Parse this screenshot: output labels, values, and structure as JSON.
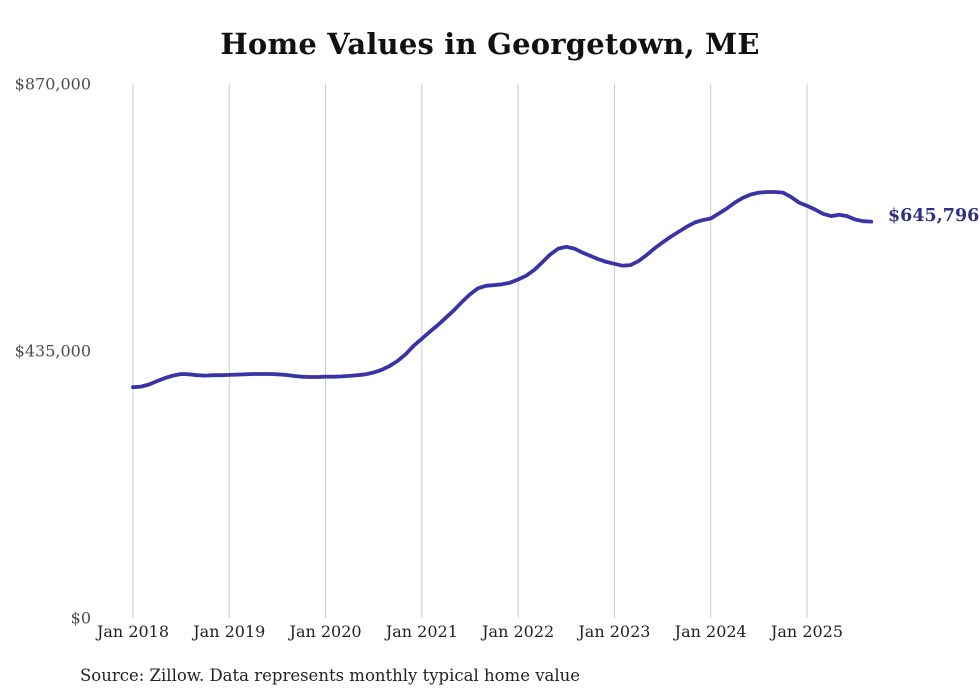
{
  "colors": {
    "line": "#3a33a6",
    "end_label": "#312e86",
    "grid": "#cbcbcb",
    "y_tick_text": "#4d4d4d",
    "x_tick_text": "#222222",
    "title_text": "#111111",
    "source_text": "#222222",
    "background": "#ffffff"
  },
  "chart_data": {
    "type": "line",
    "title": "Home Values in Georgetown, ME",
    "series_name": "Monthly typical home value",
    "frequency": "monthly",
    "x_start": "Jan 2018",
    "x_end": "Sep 2025",
    "x_tick_labels": [
      "Jan 2018",
      "Jan 2019",
      "Jan 2020",
      "Jan 2021",
      "Jan 2022",
      "Jan 2023",
      "Jan 2024",
      "Jan 2025"
    ],
    "y_ticks": [
      {
        "label": "$870,000",
        "value": 870000
      },
      {
        "label": "$435,000",
        "value": 435000
      },
      {
        "label": "$0",
        "value": 0
      }
    ],
    "ylim": [
      0,
      870000
    ],
    "grid": "vertical-only",
    "legend": "none",
    "end_label": "$645,796",
    "end_value": 645796,
    "source": "Source: Zillow. Data represents monthly typical home value",
    "values": [
      376000,
      377000,
      380500,
      386000,
      391000,
      395000,
      397500,
      397000,
      395500,
      395000,
      395500,
      395500,
      396000,
      396500,
      397000,
      397500,
      397500,
      397500,
      397000,
      396000,
      394500,
      393200,
      392700,
      392700,
      393100,
      393100,
      393600,
      394400,
      395500,
      397100,
      400000,
      404300,
      410800,
      419000,
      430000,
      443600,
      455000,
      466500,
      477400,
      489200,
      501500,
      515000,
      527200,
      537100,
      541300,
      542400,
      543600,
      546200,
      551500,
      557600,
      566900,
      579400,
      592300,
      601900,
      604700,
      601900,
      595500,
      590000,
      584600,
      580200,
      577000,
      574000,
      575000,
      581500,
      591200,
      602100,
      611900,
      621000,
      629200,
      637300,
      644300,
      648200,
      650900,
      658900,
      667100,
      676800,
      684400,
      689900,
      693100,
      694100,
      694100,
      693100,
      686000,
      676800,
      671500,
      665600,
      658600,
      654700,
      657000,
      654700,
      649300,
      646500,
      645796
    ]
  }
}
